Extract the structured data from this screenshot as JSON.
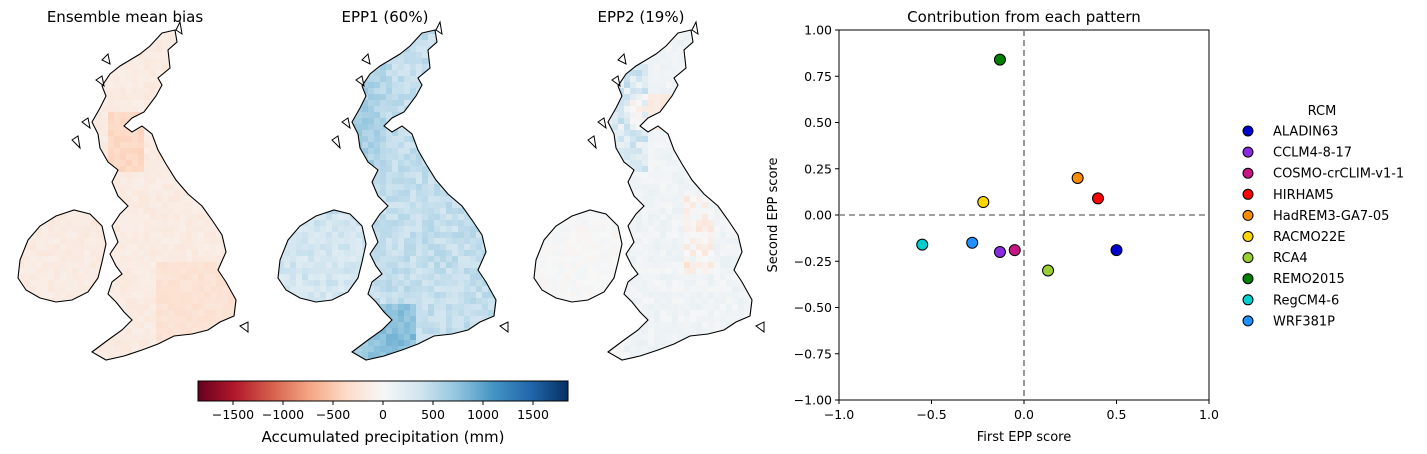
{
  "maps": {
    "panels": [
      {
        "title": "Ensemble mean bias",
        "pattern": "mean"
      },
      {
        "title": "EPP1 (60%)",
        "pattern": "epp1"
      },
      {
        "title": "EPP2 (19%)",
        "pattern": "epp2"
      }
    ],
    "colorbar": {
      "label": "Accumulated precipitation (mm)",
      "vmin": -1850,
      "vmax": 1850,
      "ticks": [
        -1500,
        -1000,
        -500,
        0,
        500,
        1000,
        1500
      ],
      "tick_labels": [
        "−1500",
        "−1000",
        "−500",
        "0",
        "500",
        "1000",
        "1500"
      ],
      "colormap": "RdBu",
      "stops": [
        "#67001f",
        "#b2182b",
        "#d6604d",
        "#f4a582",
        "#fddbc7",
        "#f7f7f7",
        "#d1e5f0",
        "#92c5de",
        "#4393c3",
        "#2166ac",
        "#053061"
      ]
    }
  },
  "chart_data": {
    "type": "scatter",
    "title": "Contribution from each pattern",
    "xlabel": "First EPP score",
    "ylabel": "Second EPP score",
    "xlim": [
      -1.0,
      1.0
    ],
    "ylim": [
      -1.0,
      1.0
    ],
    "xticks": [
      -1.0,
      -0.5,
      0.0,
      0.5,
      1.0
    ],
    "xtick_labels": [
      "−1.0",
      "−0.5",
      "0.0",
      "0.5",
      "1.0"
    ],
    "yticks": [
      1.0,
      0.75,
      0.5,
      0.25,
      0.0,
      -0.25,
      -0.5,
      -0.75,
      -1.0
    ],
    "ytick_labels": [
      "1.00",
      "0.75",
      "0.50",
      "0.25",
      "0.00",
      "−0.25",
      "−0.50",
      "−0.75",
      "−1.00"
    ],
    "reference_lines": {
      "x": 0.0,
      "y": 0.0,
      "style": "dashed",
      "color": "#808080"
    },
    "legend_title": "RCM",
    "legend_position": "right",
    "series": [
      {
        "name": "ALADIN63",
        "x": 0.5,
        "y": -0.19,
        "color": "#0000cd"
      },
      {
        "name": "CCLM4-8-17",
        "x": -0.13,
        "y": -0.2,
        "color": "#8a2be2"
      },
      {
        "name": "COSMO-crCLIM-v1-1",
        "x": -0.05,
        "y": -0.19,
        "color": "#c71585"
      },
      {
        "name": "HIRHAM5",
        "x": 0.4,
        "y": 0.09,
        "color": "#ff0000"
      },
      {
        "name": "HadREM3-GA7-05",
        "x": 0.29,
        "y": 0.2,
        "color": "#ff8c00"
      },
      {
        "name": "RACMO22E",
        "x": -0.22,
        "y": 0.07,
        "color": "#ffd700"
      },
      {
        "name": "RCA4",
        "x": 0.13,
        "y": -0.3,
        "color": "#9acd32"
      },
      {
        "name": "REMO2015",
        "x": -0.13,
        "y": 0.84,
        "color": "#008000"
      },
      {
        "name": "RegCM4-6",
        "x": -0.55,
        "y": -0.16,
        "color": "#00ced1"
      },
      {
        "name": "WRF381P",
        "x": -0.28,
        "y": -0.15,
        "color": "#1e90ff"
      }
    ]
  }
}
